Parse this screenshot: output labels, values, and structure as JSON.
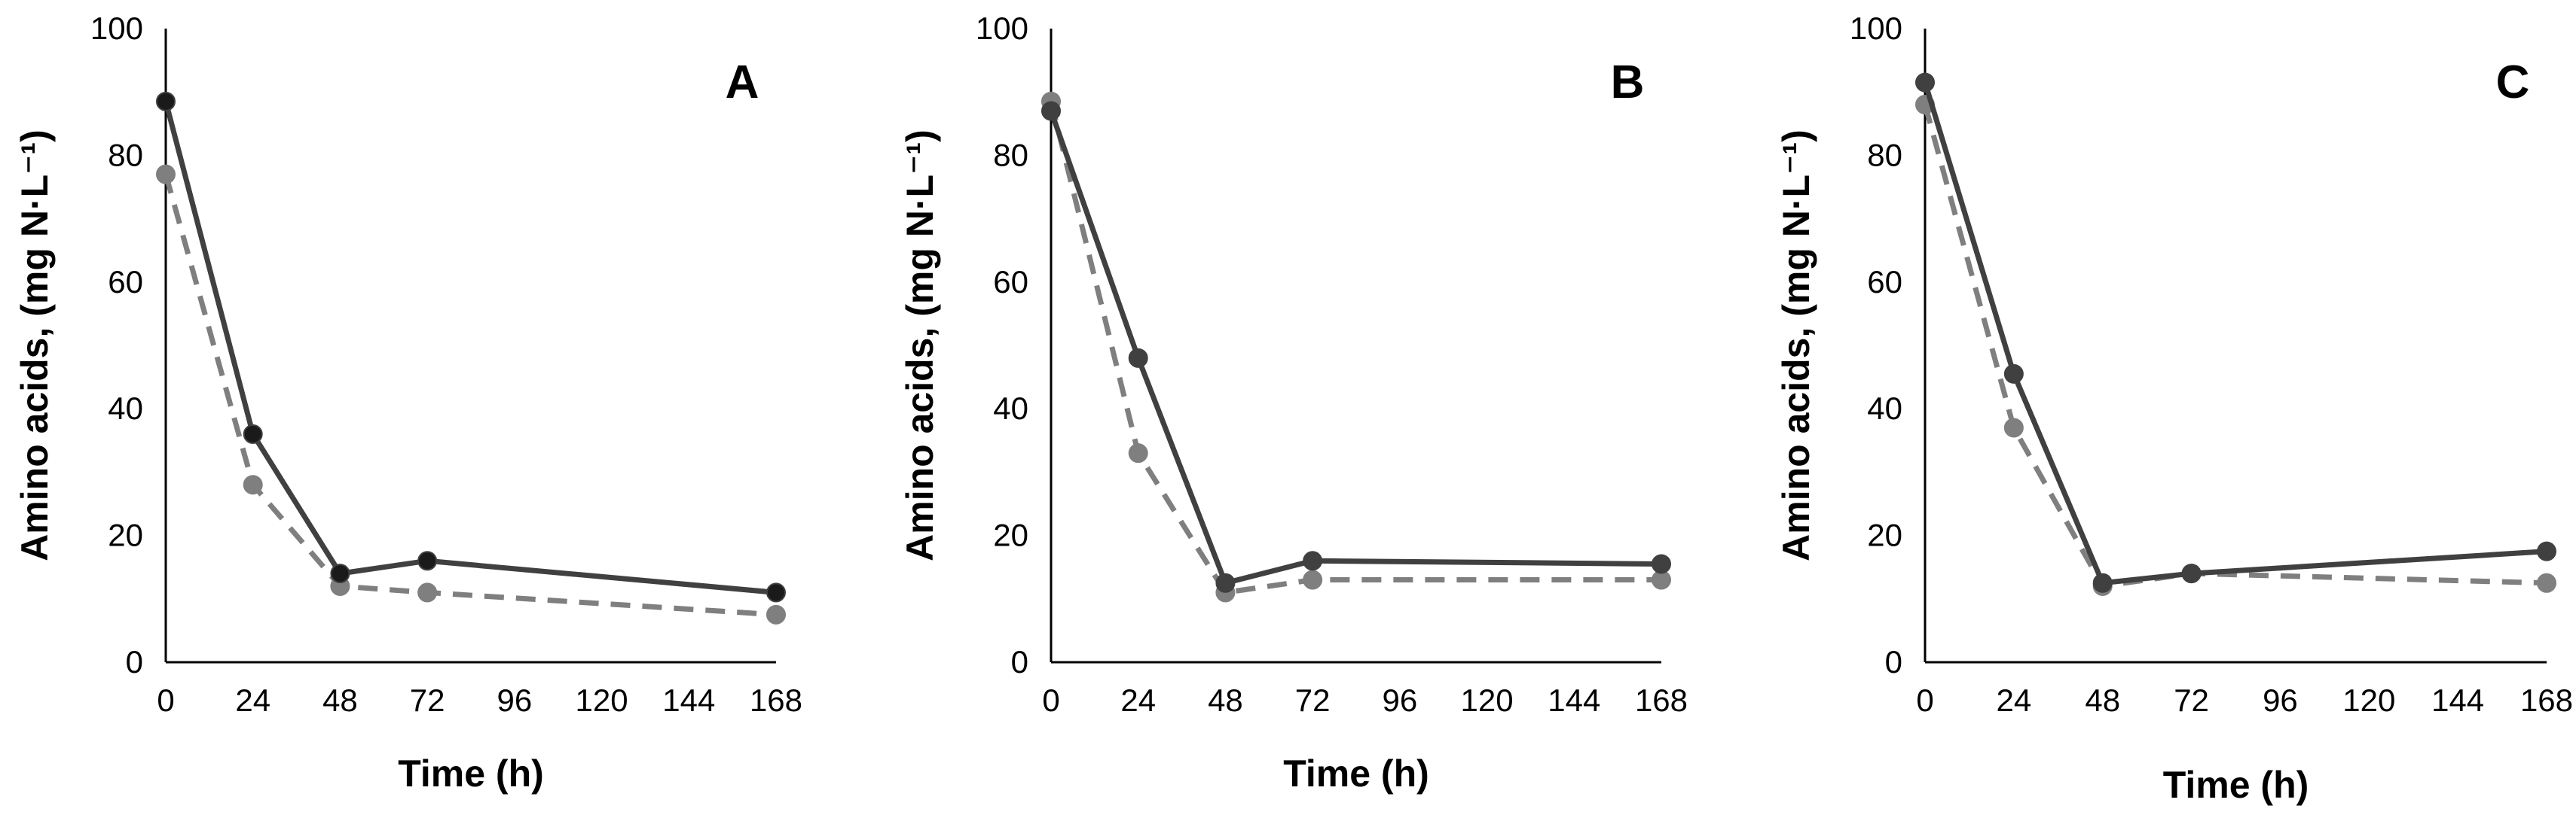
{
  "chart_data": [
    {
      "type": "line",
      "panel_label": "A",
      "title": "",
      "xlabel": "Time (h)",
      "ylabel": "Amino acids, (mg N·L⁻¹)",
      "ylim": [
        0,
        100
      ],
      "xlim": [
        0,
        168
      ],
      "x_ticks": [
        "0",
        "24",
        "48",
        "72",
        "96",
        "120",
        "144",
        "168"
      ],
      "y_ticks": [
        "0",
        "20",
        "40",
        "60",
        "80",
        "100"
      ],
      "series": [
        {
          "name": "solid",
          "line_style": "solid",
          "color": "#404040",
          "marker_color": "#1a1a1a",
          "x": [
            0,
            24,
            48,
            72,
            168
          ],
          "values": [
            88.5,
            36,
            14,
            16,
            11
          ]
        },
        {
          "name": "dashed",
          "line_style": "dashed",
          "color": "#7f7f7f",
          "marker_color": "#7f7f7f",
          "x": [
            0,
            24,
            48,
            72,
            168
          ],
          "values": [
            77,
            28,
            12,
            11,
            7.5
          ]
        }
      ]
    },
    {
      "type": "line",
      "panel_label": "B",
      "title": "",
      "xlabel": "Time (h)",
      "ylabel": "Amino acids, (mg N·L⁻¹)",
      "ylim": [
        0,
        100
      ],
      "xlim": [
        0,
        168
      ],
      "x_ticks": [
        "0",
        "24",
        "48",
        "72",
        "96",
        "120",
        "144",
        "168"
      ],
      "y_ticks": [
        "0",
        "20",
        "40",
        "60",
        "80",
        "100"
      ],
      "series": [
        {
          "name": "solid",
          "line_style": "solid",
          "color": "#404040",
          "marker_color": "#404040",
          "x": [
            0,
            24,
            48,
            72,
            168
          ],
          "values": [
            87,
            48,
            12.5,
            16,
            15.5
          ]
        },
        {
          "name": "dashed",
          "line_style": "dashed",
          "color": "#7f7f7f",
          "marker_color": "#7f7f7f",
          "x": [
            0,
            24,
            48,
            72,
            168
          ],
          "values": [
            88.5,
            33,
            11,
            13,
            13
          ]
        }
      ]
    },
    {
      "type": "line",
      "panel_label": "C",
      "title": "",
      "xlabel": "Time (h)",
      "ylabel": "Amino acids, (mg N·L⁻¹)",
      "ylim": [
        0,
        100
      ],
      "xlim": [
        0,
        168
      ],
      "x_ticks": [
        "0",
        "24",
        "48",
        "72",
        "96",
        "120",
        "144",
        "168"
      ],
      "y_ticks": [
        "0",
        "20",
        "40",
        "60",
        "80",
        "100"
      ],
      "series": [
        {
          "name": "solid",
          "line_style": "solid",
          "color": "#404040",
          "marker_color": "#404040",
          "x": [
            0,
            24,
            48,
            72,
            168
          ],
          "values": [
            91.5,
            45.5,
            12.5,
            14,
            17.5
          ]
        },
        {
          "name": "dashed",
          "line_style": "dashed",
          "color": "#7f7f7f",
          "marker_color": "#7f7f7f",
          "x": [
            0,
            24,
            48,
            72,
            168
          ],
          "values": [
            88,
            37,
            12,
            14,
            12.5
          ]
        }
      ]
    }
  ]
}
